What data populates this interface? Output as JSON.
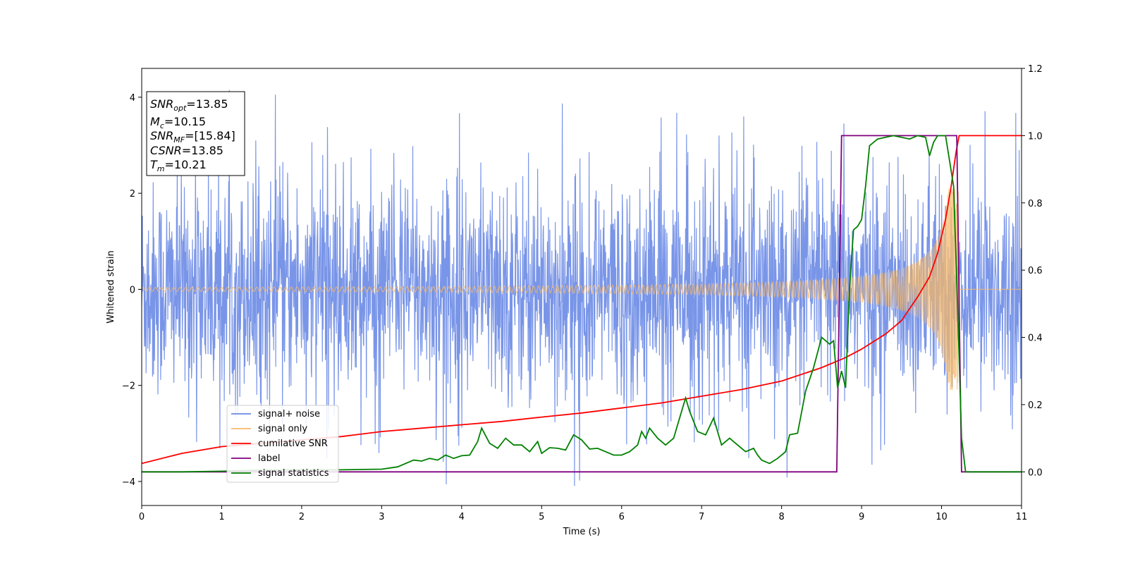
{
  "chart_data": {
    "type": "line",
    "xlabel": "Time (s)",
    "ylabel": "Whitened strain",
    "xlim": [
      0,
      11
    ],
    "ylim": [
      -4.5,
      4.6
    ],
    "y2lim": [
      -0.1,
      1.2
    ],
    "xticks": [
      0,
      1,
      2,
      3,
      4,
      5,
      6,
      7,
      8,
      9,
      10,
      11
    ],
    "yticks": [
      -4,
      -2,
      0,
      2,
      4
    ],
    "y2ticks": [
      "0.0",
      "0.2",
      "0.4",
      "0.6",
      "0.8",
      "1.0",
      "1.2"
    ],
    "grid": false,
    "legend_position": "lower-left",
    "annotation": [
      {
        "base": "SNR",
        "sub": "opt",
        "value": "=13.85"
      },
      {
        "base": "M",
        "sub": "c",
        "value": "=10.15"
      },
      {
        "base": "SNR",
        "sub": "MF",
        "value": "=[15.84]"
      },
      {
        "base": "CSNR",
        "sub": "",
        "value": "=13.85"
      },
      {
        "base": "T",
        "sub": "m",
        "value": "=10.21"
      }
    ],
    "series": [
      {
        "name": "signal+ noise",
        "color": "#6a89e6",
        "axis": "left",
        "kind": "noise",
        "typical_amplitude": 2.0,
        "max": 4.15,
        "min": -4.1,
        "x_range": [
          0,
          11
        ]
      },
      {
        "name": "signal only",
        "color": "#f5b86a",
        "axis": "left",
        "kind": "chirp",
        "start_amplitude": 0.04,
        "peak_amplitude": 2.1,
        "merger_time": 10.21,
        "x_range": [
          0,
          11
        ]
      },
      {
        "name": "cumilative SNR",
        "color": "#ff0000",
        "axis": "right",
        "points": [
          [
            0,
            0.025
          ],
          [
            0.5,
            0.055
          ],
          [
            1,
            0.075
          ],
          [
            1.5,
            0.085
          ],
          [
            2,
            0.095
          ],
          [
            2.5,
            0.105
          ],
          [
            3,
            0.12
          ],
          [
            3.5,
            0.13
          ],
          [
            4,
            0.14
          ],
          [
            4.5,
            0.15
          ],
          [
            5,
            0.163
          ],
          [
            5.5,
            0.175
          ],
          [
            6,
            0.19
          ],
          [
            6.5,
            0.205
          ],
          [
            7,
            0.225
          ],
          [
            7.5,
            0.245
          ],
          [
            8,
            0.27
          ],
          [
            8.5,
            0.31
          ],
          [
            8.8,
            0.34
          ],
          [
            9,
            0.365
          ],
          [
            9.3,
            0.41
          ],
          [
            9.5,
            0.45
          ],
          [
            9.7,
            0.52
          ],
          [
            9.85,
            0.58
          ],
          [
            9.95,
            0.65
          ],
          [
            10.05,
            0.75
          ],
          [
            10.12,
            0.85
          ],
          [
            10.18,
            0.95
          ],
          [
            10.22,
            1.0
          ],
          [
            11,
            1.0
          ]
        ]
      },
      {
        "name": "label",
        "color": "#800080",
        "axis": "right",
        "points": [
          [
            0,
            0.0
          ],
          [
            8.69,
            0.0
          ],
          [
            8.75,
            1.0
          ],
          [
            10.19,
            1.0
          ],
          [
            10.25,
            0.0
          ],
          [
            11,
            0.0
          ]
        ]
      },
      {
        "name": "signal statistics",
        "color": "#008000",
        "axis": "right",
        "points": [
          [
            0,
            0.0
          ],
          [
            0.5,
            0.0
          ],
          [
            1.0,
            0.002
          ],
          [
            1.5,
            0.005
          ],
          [
            2.0,
            0.006
          ],
          [
            2.5,
            0.006
          ],
          [
            3.0,
            0.008
          ],
          [
            3.2,
            0.015
          ],
          [
            3.4,
            0.035
          ],
          [
            3.5,
            0.032
          ],
          [
            3.6,
            0.04
          ],
          [
            3.7,
            0.035
          ],
          [
            3.8,
            0.05
          ],
          [
            3.9,
            0.04
          ],
          [
            4.0,
            0.048
          ],
          [
            4.1,
            0.05
          ],
          [
            4.2,
            0.09
          ],
          [
            4.25,
            0.13
          ],
          [
            4.35,
            0.085
          ],
          [
            4.45,
            0.07
          ],
          [
            4.55,
            0.1
          ],
          [
            4.65,
            0.08
          ],
          [
            4.75,
            0.08
          ],
          [
            4.85,
            0.06
          ],
          [
            4.95,
            0.09
          ],
          [
            5.0,
            0.055
          ],
          [
            5.1,
            0.072
          ],
          [
            5.2,
            0.07
          ],
          [
            5.3,
            0.065
          ],
          [
            5.4,
            0.11
          ],
          [
            5.5,
            0.095
          ],
          [
            5.6,
            0.068
          ],
          [
            5.7,
            0.07
          ],
          [
            5.8,
            0.06
          ],
          [
            5.9,
            0.05
          ],
          [
            6.0,
            0.05
          ],
          [
            6.1,
            0.06
          ],
          [
            6.2,
            0.08
          ],
          [
            6.25,
            0.12
          ],
          [
            6.3,
            0.1
          ],
          [
            6.35,
            0.13
          ],
          [
            6.45,
            0.1
          ],
          [
            6.55,
            0.08
          ],
          [
            6.65,
            0.1
          ],
          [
            6.75,
            0.18
          ],
          [
            6.8,
            0.22
          ],
          [
            6.85,
            0.18
          ],
          [
            6.95,
            0.12
          ],
          [
            7.05,
            0.11
          ],
          [
            7.15,
            0.16
          ],
          [
            7.25,
            0.08
          ],
          [
            7.35,
            0.1
          ],
          [
            7.45,
            0.08
          ],
          [
            7.55,
            0.06
          ],
          [
            7.65,
            0.07
          ],
          [
            7.7,
            0.05
          ],
          [
            7.75,
            0.035
          ],
          [
            7.85,
            0.025
          ],
          [
            7.95,
            0.04
          ],
          [
            8.05,
            0.06
          ],
          [
            8.1,
            0.11
          ],
          [
            8.2,
            0.115
          ],
          [
            8.3,
            0.24
          ],
          [
            8.4,
            0.31
          ],
          [
            8.5,
            0.4
          ],
          [
            8.6,
            0.38
          ],
          [
            8.65,
            0.39
          ],
          [
            8.7,
            0.25
          ],
          [
            8.75,
            0.3
          ],
          [
            8.8,
            0.25
          ],
          [
            8.85,
            0.55
          ],
          [
            8.9,
            0.72
          ],
          [
            8.95,
            0.73
          ],
          [
            9.0,
            0.75
          ],
          [
            9.05,
            0.85
          ],
          [
            9.1,
            0.97
          ],
          [
            9.2,
            0.99
          ],
          [
            9.3,
            0.995
          ],
          [
            9.4,
            1.0
          ],
          [
            9.5,
            0.995
          ],
          [
            9.6,
            0.99
          ],
          [
            9.7,
            1.0
          ],
          [
            9.8,
            0.995
          ],
          [
            9.85,
            0.94
          ],
          [
            9.9,
            0.98
          ],
          [
            9.95,
            1.0
          ],
          [
            10.05,
            1.0
          ],
          [
            10.15,
            0.85
          ],
          [
            10.2,
            0.5
          ],
          [
            10.25,
            0.1
          ],
          [
            10.3,
            0.0
          ],
          [
            11,
            0.0
          ]
        ]
      }
    ]
  }
}
